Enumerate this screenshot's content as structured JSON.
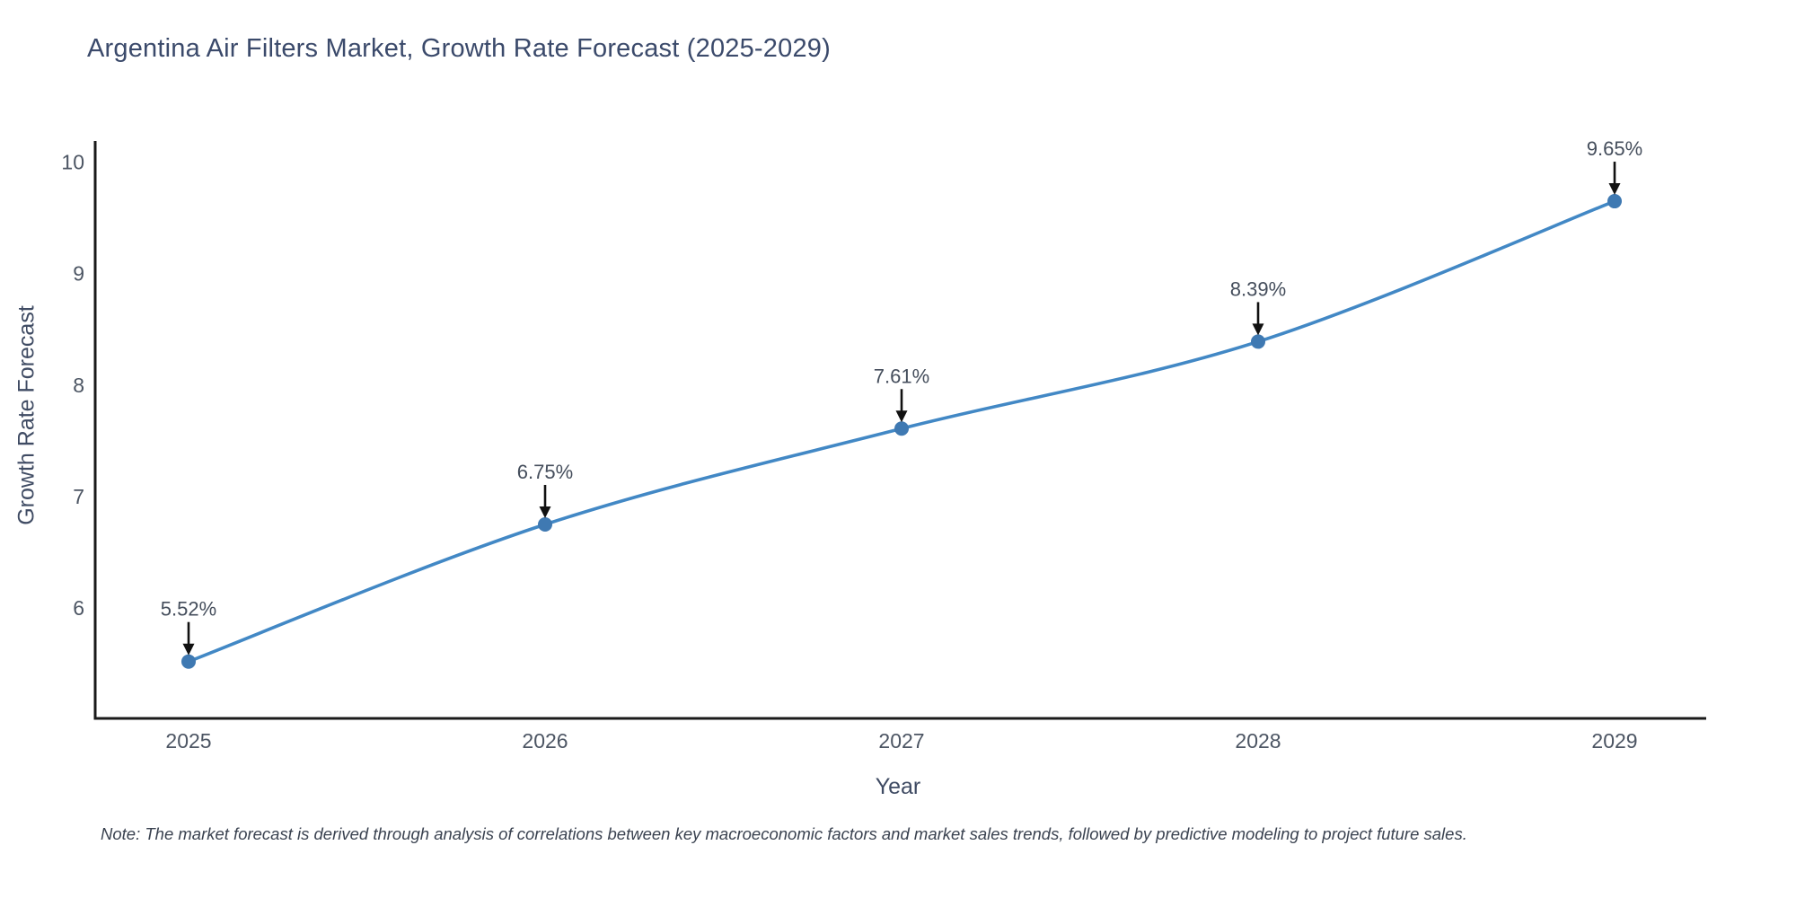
{
  "chart_data": {
    "type": "line",
    "title": "Argentina Air Filters Market, Growth Rate Forecast (2025-2029)",
    "x": [
      "2025",
      "2026",
      "2027",
      "2028",
      "2029"
    ],
    "series": [
      {
        "name": "Growth Rate Forecast",
        "values": [
          5.52,
          6.75,
          7.61,
          8.39,
          9.65
        ]
      }
    ],
    "point_labels": [
      "5.52%",
      "6.75%",
      "7.61%",
      "8.39%",
      "9.65%"
    ],
    "xlabel": "Year",
    "ylabel": "Growth Rate Forecast",
    "yticks": [
      6,
      7,
      8,
      9,
      10
    ],
    "ylim": [
      5.01,
      10.19
    ],
    "grid": false,
    "legend": null,
    "line_color": "#4288c5",
    "marker_color": "#3f79b2",
    "axis_color": "#1a1a1a",
    "annotation_arrow_color": "#111111",
    "note": "Note: The market forecast is derived through analysis of correlations between key macroeconomic factors and market sales trends, followed by predictive modeling to project future sales."
  }
}
